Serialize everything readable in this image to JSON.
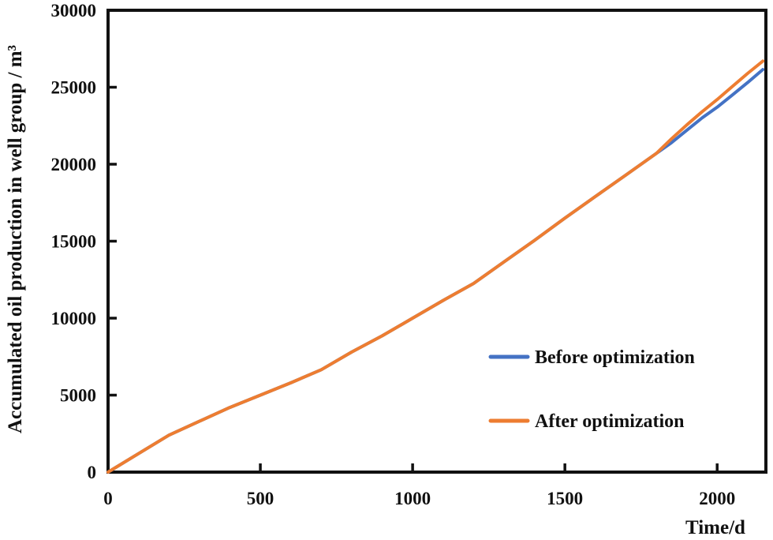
{
  "figure": {
    "background_color": "#ffffff",
    "text_color": "#111111",
    "axis_color": "#111111"
  },
  "chart_data": {
    "type": "line",
    "title": "",
    "xlabel": "Time/d",
    "ylabel": "Accumulated oil production in well group / m³",
    "xlim": [
      0,
      2160
    ],
    "ylim": [
      0,
      30000
    ],
    "xticks": [
      0,
      500,
      1000,
      1500,
      2000
    ],
    "yticks": [
      0,
      5000,
      10000,
      15000,
      20000,
      25000,
      30000
    ],
    "grid": false,
    "legend_position": "inside-right-middle",
    "x": [
      0,
      100,
      200,
      300,
      400,
      500,
      600,
      700,
      800,
      900,
      1000,
      1100,
      1200,
      1300,
      1400,
      1500,
      1600,
      1700,
      1800,
      1850,
      1900,
      1950,
      2000,
      2050,
      2100,
      2150
    ],
    "series": [
      {
        "name": "Before optimization",
        "color": "#4472C4",
        "values": [
          0,
          1200,
          2400,
          3300,
          4200,
          5000,
          5800,
          6650,
          7800,
          8850,
          10000,
          11150,
          12250,
          13650,
          15050,
          16500,
          17900,
          19300,
          20700,
          21400,
          22200,
          23000,
          23700,
          24500,
          25300,
          26150
        ]
      },
      {
        "name": "After optimization",
        "color": "#ED7D31",
        "values": [
          0,
          1200,
          2400,
          3300,
          4200,
          5000,
          5800,
          6650,
          7800,
          8850,
          10000,
          11150,
          12250,
          13650,
          15050,
          16500,
          17900,
          19300,
          20700,
          21650,
          22550,
          23400,
          24200,
          25050,
          25900,
          26700
        ]
      }
    ]
  }
}
